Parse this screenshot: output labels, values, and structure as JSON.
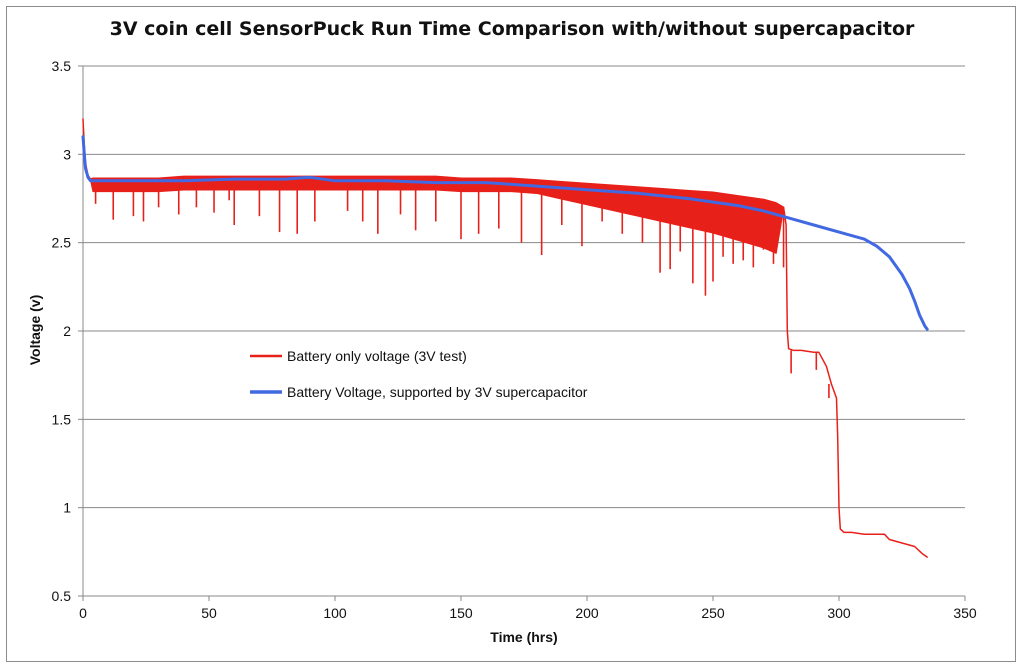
{
  "chart_data": {
    "type": "line",
    "title": "3V coin cell SensorPuck Run Time Comparison with/without supercapacitor",
    "xlabel": "Time (hrs)",
    "ylabel": "Voltage (v)",
    "xlim": [
      0,
      350
    ],
    "ylim": [
      0.5,
      3.5
    ],
    "x_ticks": [
      "0",
      "50",
      "100",
      "150",
      "200",
      "250",
      "300",
      "350"
    ],
    "y_ticks": [
      "0.5",
      "1",
      "1.5",
      "2",
      "2.5",
      "3",
      "3.5"
    ],
    "grid": "horizontal",
    "legend_position": "center-left",
    "series": [
      {
        "name": "Battery only voltage (3V test)",
        "color": "#e8201a",
        "x": [
          0,
          0.5,
          1,
          2,
          3,
          4,
          5,
          10,
          20,
          30,
          40,
          50,
          60,
          70,
          80,
          90,
          100,
          110,
          120,
          130,
          140,
          150,
          160,
          170,
          180,
          190,
          200,
          210,
          220,
          230,
          240,
          250,
          260,
          270,
          275,
          278,
          279,
          279.5,
          280,
          282,
          285,
          290,
          292,
          295,
          297,
          299,
          299.5,
          300,
          300.5,
          302,
          305,
          310,
          315,
          318,
          320,
          325,
          330,
          333,
          335
        ],
        "y": [
          3.2,
          3.05,
          2.95,
          2.88,
          2.86,
          2.85,
          2.85,
          2.85,
          2.85,
          2.85,
          2.86,
          2.86,
          2.86,
          2.86,
          2.86,
          2.86,
          2.86,
          2.86,
          2.86,
          2.86,
          2.86,
          2.85,
          2.85,
          2.85,
          2.84,
          2.83,
          2.82,
          2.81,
          2.8,
          2.79,
          2.78,
          2.77,
          2.75,
          2.73,
          2.71,
          2.7,
          2.6,
          2.0,
          1.9,
          1.89,
          1.89,
          1.88,
          1.88,
          1.8,
          1.7,
          1.62,
          1.4,
          1.0,
          0.88,
          0.86,
          0.86,
          0.85,
          0.85,
          0.85,
          0.82,
          0.8,
          0.78,
          0.74,
          0.72
        ],
        "spikes": [
          {
            "x": 5,
            "y": 2.72
          },
          {
            "x": 12,
            "y": 2.63
          },
          {
            "x": 20,
            "y": 2.65
          },
          {
            "x": 24,
            "y": 2.62
          },
          {
            "x": 30,
            "y": 2.7
          },
          {
            "x": 38,
            "y": 2.66
          },
          {
            "x": 45,
            "y": 2.7
          },
          {
            "x": 52,
            "y": 2.67
          },
          {
            "x": 58,
            "y": 2.74
          },
          {
            "x": 60,
            "y": 2.6
          },
          {
            "x": 70,
            "y": 2.65
          },
          {
            "x": 78,
            "y": 2.56
          },
          {
            "x": 85,
            "y": 2.55
          },
          {
            "x": 92,
            "y": 2.62
          },
          {
            "x": 105,
            "y": 2.68
          },
          {
            "x": 111,
            "y": 2.62
          },
          {
            "x": 117,
            "y": 2.55
          },
          {
            "x": 126,
            "y": 2.66
          },
          {
            "x": 132,
            "y": 2.57
          },
          {
            "x": 140,
            "y": 2.62
          },
          {
            "x": 150,
            "y": 2.52
          },
          {
            "x": 157,
            "y": 2.55
          },
          {
            "x": 165,
            "y": 2.58
          },
          {
            "x": 174,
            "y": 2.5
          },
          {
            "x": 182,
            "y": 2.43
          },
          {
            "x": 190,
            "y": 2.6
          },
          {
            "x": 198,
            "y": 2.48
          },
          {
            "x": 206,
            "y": 2.62
          },
          {
            "x": 214,
            "y": 2.55
          },
          {
            "x": 222,
            "y": 2.5
          },
          {
            "x": 229,
            "y": 2.33
          },
          {
            "x": 233,
            "y": 2.35
          },
          {
            "x": 237,
            "y": 2.45
          },
          {
            "x": 242,
            "y": 2.27
          },
          {
            "x": 247,
            "y": 2.2
          },
          {
            "x": 250,
            "y": 2.28
          },
          {
            "x": 254,
            "y": 2.42
          },
          {
            "x": 258,
            "y": 2.38
          },
          {
            "x": 262,
            "y": 2.4
          },
          {
            "x": 266,
            "y": 2.36
          },
          {
            "x": 270,
            "y": 2.46
          },
          {
            "x": 274,
            "y": 2.38
          },
          {
            "x": 278,
            "y": 2.36
          },
          {
            "x": 281,
            "y": 1.76
          },
          {
            "x": 291,
            "y": 1.78
          },
          {
            "x": 296,
            "y": 1.62
          }
        ]
      },
      {
        "name": "Battery Voltage, supported by 3V supercapacitor",
        "color": "#4169e1",
        "x": [
          0,
          0.5,
          1,
          2,
          3,
          5,
          10,
          20,
          40,
          60,
          80,
          90,
          100,
          120,
          140,
          160,
          180,
          200,
          220,
          240,
          260,
          270,
          280,
          290,
          300,
          305,
          310,
          315,
          320,
          325,
          328,
          330,
          332,
          334,
          335
        ],
        "y": [
          3.1,
          3.0,
          2.92,
          2.87,
          2.85,
          2.85,
          2.85,
          2.85,
          2.85,
          2.86,
          2.86,
          2.87,
          2.85,
          2.85,
          2.84,
          2.84,
          2.82,
          2.8,
          2.78,
          2.75,
          2.71,
          2.68,
          2.64,
          2.6,
          2.56,
          2.54,
          2.52,
          2.48,
          2.42,
          2.32,
          2.24,
          2.17,
          2.09,
          2.03,
          2.01
        ]
      }
    ]
  }
}
